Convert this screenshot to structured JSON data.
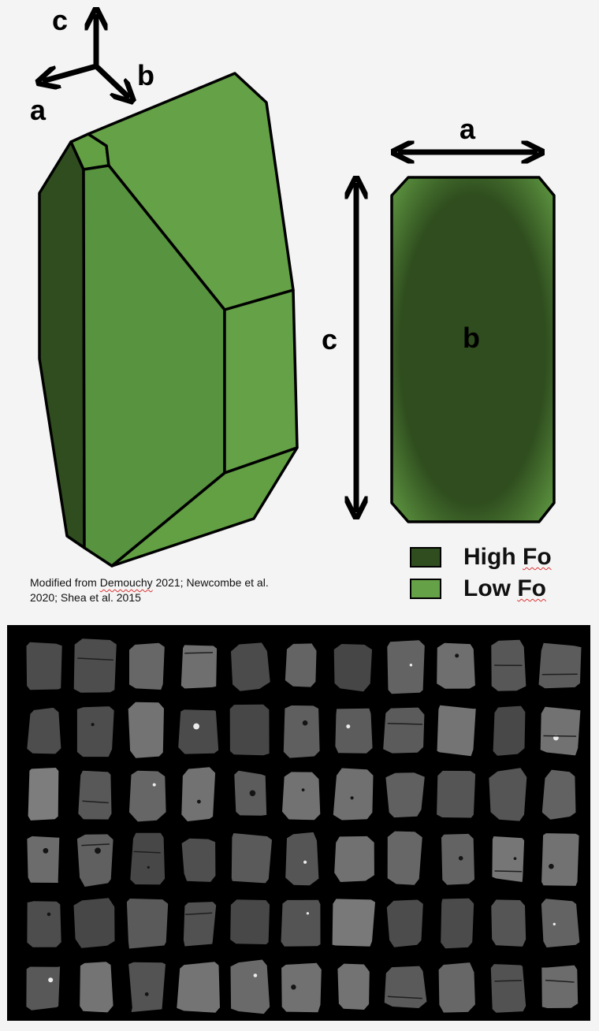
{
  "colors": {
    "high_fo": "#2f4d1e",
    "low_fo": "#65a146",
    "mid_face": "#58933f",
    "grain_bg": "#000000"
  },
  "axes_triad": {
    "c": "c",
    "b": "b",
    "a": "a"
  },
  "section_labels": {
    "a": "a",
    "b": "b",
    "c": "c"
  },
  "caption": {
    "pre": "Modified from ",
    "author": "Demouchy",
    "post": " 2021; Newcombe et al. 2020; Shea et al. 2015"
  },
  "legend": {
    "items": [
      {
        "prefix": "High ",
        "suffix": "Fo",
        "color": "#2f4d1e"
      },
      {
        "prefix": "Low ",
        "suffix": "Fo",
        "color": "#65a146"
      }
    ]
  },
  "grain_photo": {
    "description_hidden": "",
    "rows": 6,
    "cols": 11
  }
}
